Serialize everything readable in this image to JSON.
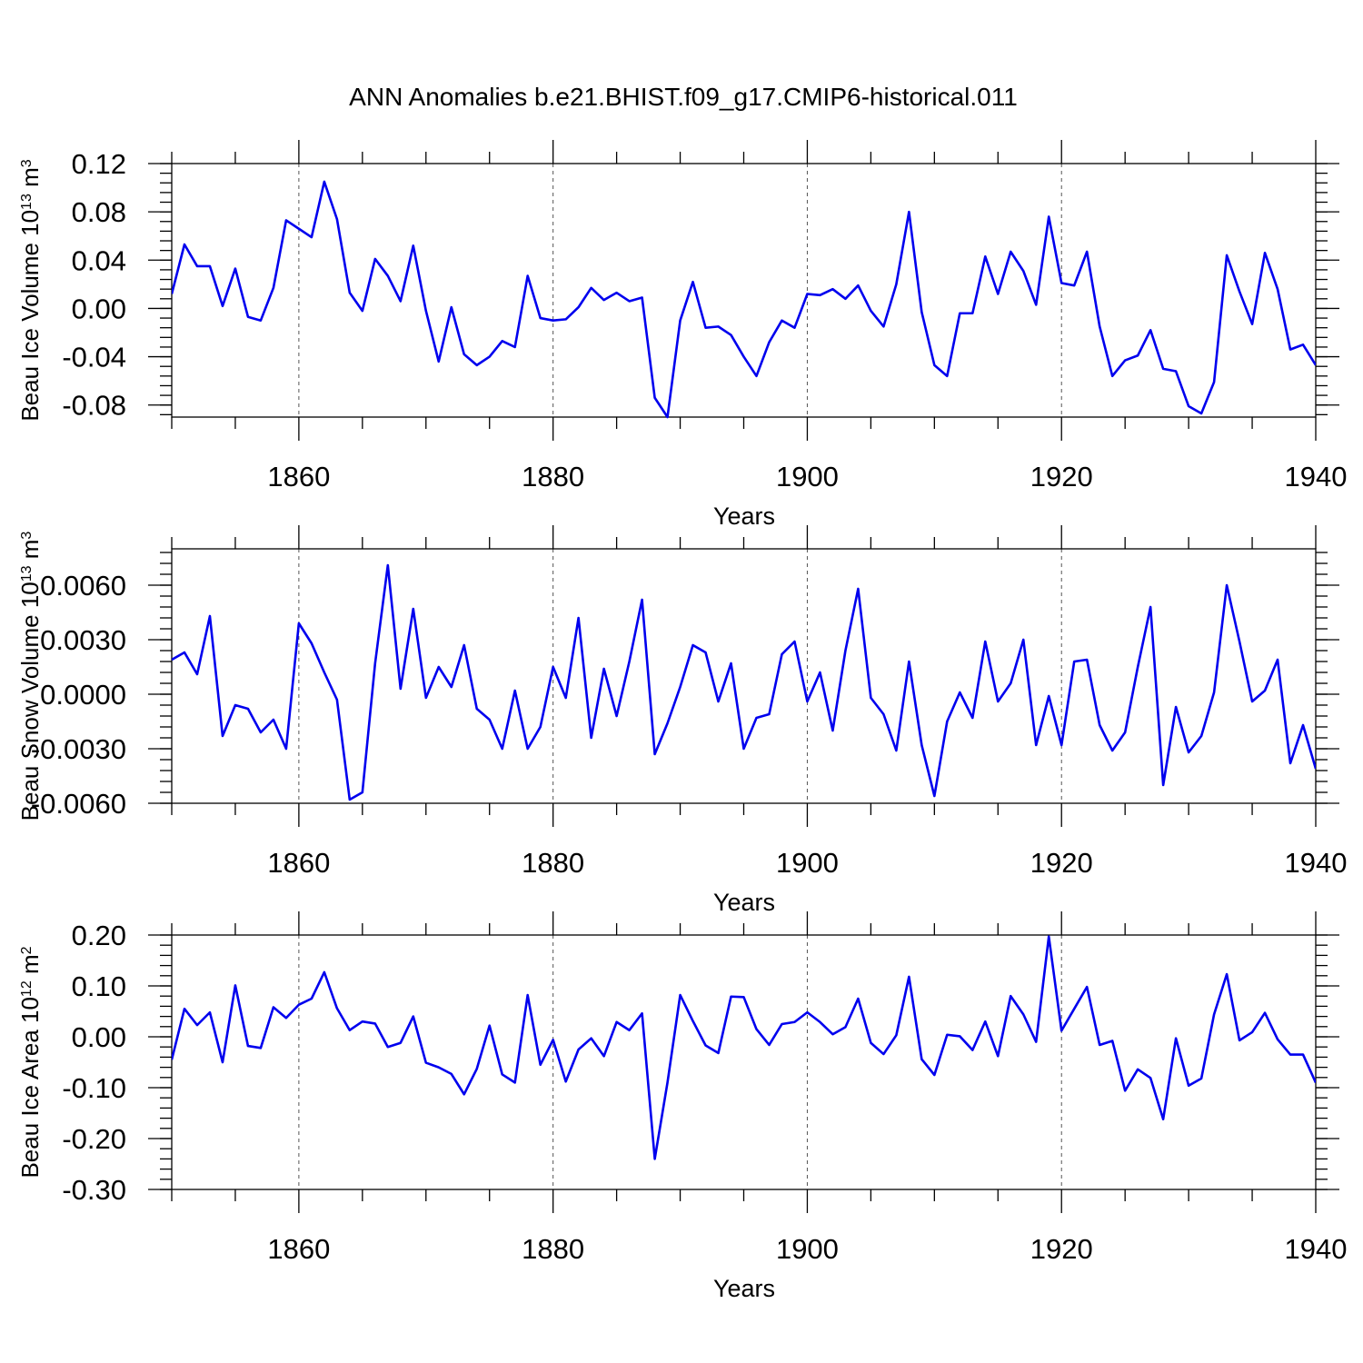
{
  "title": "ANN Anomalies b.e21.BHIST.f09_g17.CMIP6-historical.011",
  "line_color": "#0000ee",
  "chart_data": [
    {
      "type": "line",
      "ylabel": "Beau Ice Volume 10",
      "ylabel_exp": "13",
      "ylabel_unit": " m",
      "ylabel_unit_exp": "3",
      "xlabel": "Years",
      "xlim": [
        1850,
        1940
      ],
      "ylim": [
        -0.09,
        0.12
      ],
      "x_ticks": [
        1860,
        1880,
        1900,
        1920,
        1940
      ],
      "x_tick_labels": [
        "1860",
        "1880",
        "1900",
        "1920",
        "1940"
      ],
      "y_ticks": [
        -0.08,
        -0.04,
        0.0,
        0.04,
        0.08,
        0.12
      ],
      "y_tick_labels": [
        "-0.08",
        "-0.04",
        "0.00",
        "0.04",
        "0.08",
        "0.12"
      ],
      "x_start": 1850,
      "values": [
        0.012,
        0.053,
        0.035,
        0.035,
        0.002,
        0.033,
        -0.007,
        -0.01,
        0.017,
        0.073,
        0.066,
        0.059,
        0.105,
        0.074,
        0.013,
        -0.002,
        0.041,
        0.027,
        0.006,
        0.052,
        -0.002,
        -0.044,
        0.001,
        -0.038,
        -0.047,
        -0.04,
        -0.027,
        -0.032,
        0.027,
        -0.008,
        -0.01,
        -0.009,
        0.001,
        0.017,
        0.007,
        0.013,
        0.006,
        0.009,
        -0.074,
        -0.09,
        -0.01,
        0.022,
        -0.016,
        -0.015,
        -0.022,
        -0.04,
        -0.056,
        -0.028,
        -0.01,
        -0.016,
        0.012,
        0.011,
        0.016,
        0.008,
        0.019,
        -0.002,
        -0.015,
        0.02,
        0.08,
        -0.003,
        -0.047,
        -0.056,
        -0.004,
        -0.004,
        0.043,
        0.012,
        0.047,
        0.031,
        0.003,
        0.076,
        0.021,
        0.019,
        0.047,
        -0.015,
        -0.056,
        -0.043,
        -0.039,
        -0.018,
        -0.05,
        -0.052,
        -0.081,
        -0.087,
        -0.061,
        0.044,
        0.014,
        -0.013,
        0.046,
        0.016,
        -0.034,
        -0.03,
        -0.047
      ]
    },
    {
      "type": "line",
      "ylabel": "Beau Snow Volume 10",
      "ylabel_exp": "13",
      "ylabel_unit": " m",
      "ylabel_unit_exp": "3",
      "xlabel": "Years",
      "xlim": [
        1850,
        1940
      ],
      "ylim": [
        -0.006,
        0.008
      ],
      "x_ticks": [
        1860,
        1880,
        1900,
        1920,
        1940
      ],
      "x_tick_labels": [
        "1860",
        "1880",
        "1900",
        "1920",
        "1940"
      ],
      "y_ticks": [
        -0.006,
        -0.003,
        0.0,
        0.003,
        0.006
      ],
      "y_tick_labels": [
        "-0.0060",
        "-0.0030",
        "0.0000",
        "0.0030",
        "0.0060"
      ],
      "x_start": 1850,
      "values": [
        0.0019,
        0.0023,
        0.0011,
        0.0043,
        -0.0023,
        -0.0006,
        -0.0008,
        -0.0021,
        -0.0014,
        -0.003,
        0.0039,
        0.0028,
        0.0012,
        -0.0003,
        -0.0058,
        -0.0054,
        0.0017,
        0.0071,
        0.0003,
        0.0047,
        -0.0002,
        0.0015,
        0.0004,
        0.0027,
        -0.0008,
        -0.0014,
        -0.003,
        0.0002,
        -0.003,
        -0.0018,
        0.0015,
        -0.0002,
        0.0042,
        -0.0024,
        0.0014,
        -0.0012,
        0.0018,
        0.0052,
        -0.0033,
        -0.0016,
        0.0004,
        0.0027,
        0.0023,
        -0.0004,
        0.0017,
        -0.003,
        -0.0013,
        -0.0011,
        0.0022,
        0.0029,
        -0.0004,
        0.0012,
        -0.002,
        0.0024,
        0.0058,
        -0.0002,
        -0.0011,
        -0.0031,
        0.0018,
        -0.0028,
        -0.0056,
        -0.0015,
        0.0001,
        -0.0013,
        0.0029,
        -0.0004,
        0.0006,
        0.003,
        -0.0028,
        -0.0001,
        -0.0028,
        0.0018,
        0.0019,
        -0.0017,
        -0.0031,
        -0.0021,
        0.0015,
        0.0048,
        -0.005,
        -0.0007,
        -0.0032,
        -0.0023,
        0.0001,
        0.006,
        0.0029,
        -0.0004,
        0.0002,
        0.0019,
        -0.0038,
        -0.0017,
        -0.0041
      ]
    },
    {
      "type": "line",
      "ylabel": "Beau Ice Area 10",
      "ylabel_exp": "12",
      "ylabel_unit": " m",
      "ylabel_unit_exp": "2",
      "xlabel": "Years",
      "xlim": [
        1850,
        1940
      ],
      "ylim": [
        -0.3,
        0.2
      ],
      "x_ticks": [
        1860,
        1880,
        1900,
        1920,
        1940
      ],
      "x_tick_labels": [
        "1860",
        "1880",
        "1900",
        "1920",
        "1940"
      ],
      "y_ticks": [
        -0.3,
        -0.2,
        -0.1,
        0.0,
        0.1,
        0.2
      ],
      "y_tick_labels": [
        "-0.30",
        "-0.20",
        "-0.10",
        "0.00",
        "0.10",
        "0.20"
      ],
      "x_start": 1850,
      "values": [
        -0.045,
        0.055,
        0.023,
        0.048,
        -0.05,
        0.101,
        -0.018,
        -0.022,
        0.058,
        0.037,
        0.063,
        0.075,
        0.127,
        0.056,
        0.013,
        0.03,
        0.026,
        -0.02,
        -0.012,
        0.04,
        -0.051,
        -0.06,
        -0.073,
        -0.113,
        -0.063,
        0.022,
        -0.074,
        -0.09,
        0.082,
        -0.055,
        -0.006,
        -0.088,
        -0.025,
        -0.003,
        -0.038,
        0.029,
        0.013,
        0.046,
        -0.24,
        -0.09,
        0.082,
        0.031,
        -0.017,
        -0.032,
        0.079,
        0.078,
        0.015,
        -0.016,
        0.025,
        0.029,
        0.048,
        0.029,
        0.005,
        0.019,
        0.075,
        -0.012,
        -0.034,
        0.003,
        0.118,
        -0.044,
        -0.075,
        0.004,
        0.001,
        -0.026,
        0.03,
        -0.038,
        0.08,
        0.044,
        -0.01,
        0.197,
        0.012,
        0.055,
        0.098,
        -0.016,
        -0.008,
        -0.106,
        -0.064,
        -0.081,
        -0.162,
        -0.003,
        -0.096,
        -0.082,
        0.044,
        0.123,
        -0.007,
        0.009,
        0.047,
        -0.005,
        -0.035,
        -0.035,
        -0.09
      ]
    }
  ]
}
